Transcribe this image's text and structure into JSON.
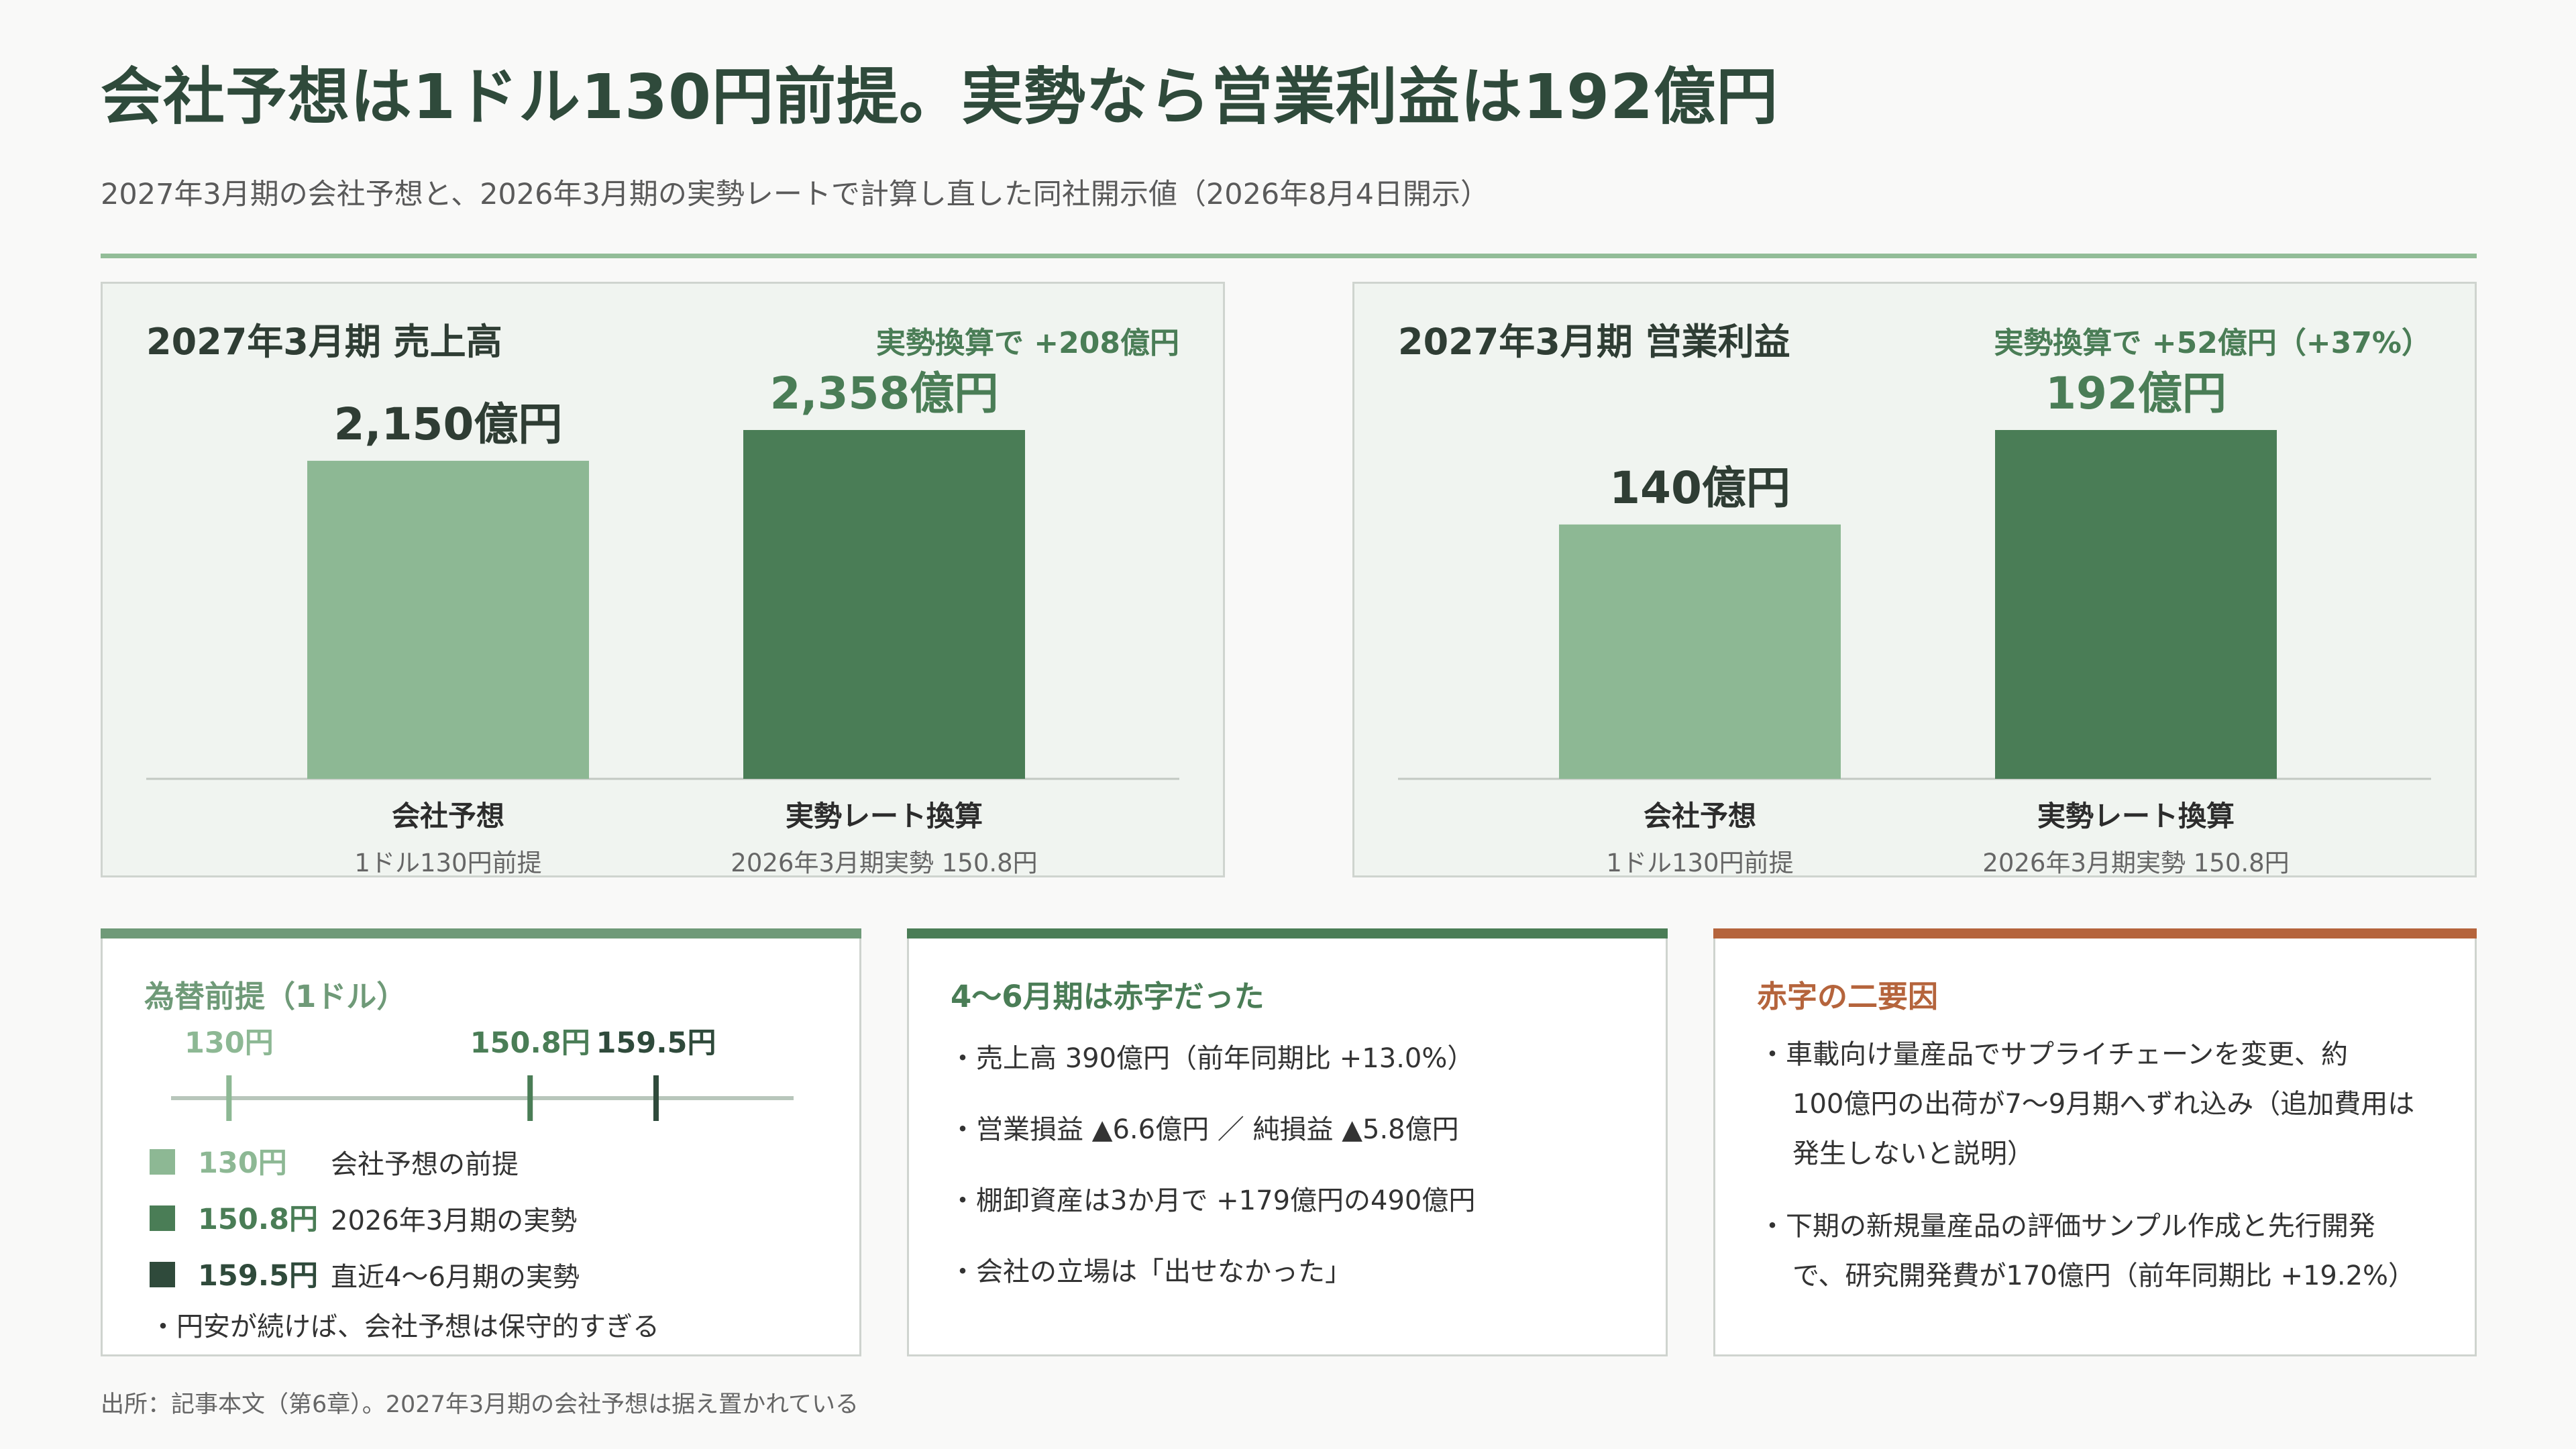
{
  "title": "会社予想は1ドル130円前提。実勢なら営業利益は192億円",
  "subtitle": "2027年3月期の会社予想と、2026年3月期の実勢レートで計算し直した同社開示値（2026年8月4日開示）",
  "colors": {
    "forecast": "#8db894",
    "actual": "#4a7d56",
    "recent": "#2f4a3b",
    "accent_red": "#b5643c",
    "title_green": "#2f4a3b"
  },
  "chart_data": [
    {
      "type": "bar",
      "title": "2027年3月期  売上高",
      "annotation": "実勢換算で +208億円",
      "categories": [
        "会社予想",
        "実勢レート換算"
      ],
      "category_notes": [
        "1ドル130円前提",
        "2026年3月期実勢 150.8円"
      ],
      "values": [
        2150,
        2358
      ],
      "value_labels": [
        "2,150億円",
        "2,358億円"
      ],
      "unit": "億円",
      "colors": [
        "#8db894",
        "#4a7d56"
      ]
    },
    {
      "type": "bar",
      "title": "2027年3月期  営業利益",
      "annotation": "実勢換算で +52億円（+37%）",
      "categories": [
        "会社予想",
        "実勢レート換算"
      ],
      "category_notes": [
        "1ドル130円前提",
        "2026年3月期実勢 150.8円"
      ],
      "values": [
        140,
        192
      ],
      "value_labels": [
        "140億円",
        "192億円"
      ],
      "unit": "億円",
      "colors": [
        "#8db894",
        "#4a7d56"
      ]
    }
  ],
  "fx_card": {
    "title": "為替前提（1ドル）",
    "scale": {
      "min": 126,
      "max": 169,
      "markers": [
        {
          "value": 130,
          "label": "130円",
          "color": "#8db894"
        },
        {
          "value": 150.8,
          "label": "150.8円",
          "color": "#4a7d56"
        },
        {
          "value": 159.5,
          "label": "159.5円",
          "color": "#2f4a3b"
        }
      ]
    },
    "legend": [
      {
        "value": "130円",
        "label": "会社予想の前提",
        "color": "#8db894"
      },
      {
        "value": "150.8円",
        "label": "2026年3月期の実勢",
        "color": "#4a7d56"
      },
      {
        "value": "159.5円",
        "label": "直近4〜6月期の実勢",
        "color": "#2f4a3b"
      }
    ],
    "note": "・円安が続けば、会社予想は保守的すぎる"
  },
  "loss_card": {
    "title": "4〜6月期は赤字だった",
    "bullets": [
      "・売上高 390億円（前年同期比 +13.0%）",
      "・営業損益 ▲6.6億円 ／ 純損益 ▲5.8億円",
      "・棚卸資産は3か月で +179億円の490億円",
      "・会社の立場は「出せなかった」"
    ]
  },
  "cause_card": {
    "title": "赤字の二要因",
    "bullets": [
      {
        "lines": [
          "・車載向け量産品でサプライチェーンを変更、約",
          "100億円の出荷が7〜9月期へずれ込み（追加費用は",
          "発生しないと説明）"
        ]
      },
      {
        "lines": [
          "・下期の新規量産品の評価サンプル作成と先行開発",
          "で、研究開発費が170億円（前年同期比 +19.2%）"
        ]
      }
    ]
  },
  "source": "出所：記事本文（第6章）。2027年3月期の会社予想は据え置かれている"
}
